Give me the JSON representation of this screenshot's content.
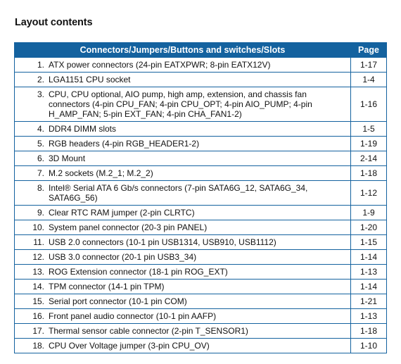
{
  "document": {
    "section_title": "Layout contents"
  },
  "table": {
    "headers": {
      "name": "Connectors/Jumpers/Buttons and switches/Slots",
      "page": "Page"
    },
    "rows": [
      {
        "num": "1.",
        "desc": "ATX power connectors (24-pin EATXPWR; 8-pin EATX12V)",
        "page": "1-17"
      },
      {
        "num": "2.",
        "desc": "LGA1151 CPU socket",
        "page": "1-4"
      },
      {
        "num": "3.",
        "desc": "CPU, CPU optional, AIO pump, high amp, extension, and chassis fan connectors (4-pin CPU_FAN; 4-pin CPU_OPT; 4-pin AIO_PUMP; 4-pin H_AMP_FAN; 5-pin EXT_FAN; 4-pin CHA_FAN1-2)",
        "page": "1-16"
      },
      {
        "num": "4.",
        "desc": "DDR4 DIMM slots",
        "page": "1-5"
      },
      {
        "num": "5.",
        "desc": "RGB headers (4-pin RGB_HEADER1-2)",
        "page": "1-19"
      },
      {
        "num": "6.",
        "desc": "3D Mount",
        "page": "2-14"
      },
      {
        "num": "7.",
        "desc": "M.2 sockets (M.2_1; M.2_2)",
        "page": "1-18"
      },
      {
        "num": "8.",
        "desc": "Intel® Serial ATA 6 Gb/s connectors (7-pin SATA6G_12, SATA6G_34, SATA6G_56)",
        "page": "1-12"
      },
      {
        "num": "9.",
        "desc": "Clear RTC RAM jumper (2-pin CLRTC)",
        "page": "1-9"
      },
      {
        "num": "10.",
        "desc": "System panel connector (20-3 pin PANEL)",
        "page": "1-20"
      },
      {
        "num": "11.",
        "desc": "USB 2.0 connectors (10-1 pin USB1314, USB910, USB1112)",
        "page": "1-15"
      },
      {
        "num": "12.",
        "desc": "USB 3.0 connector (20-1 pin USB3_34)",
        "page": "1-14"
      },
      {
        "num": "13.",
        "desc": "ROG Extension connector (18-1 pin ROG_EXT)",
        "page": "1-13"
      },
      {
        "num": "14.",
        "desc": "TPM connector (14-1 pin TPM)",
        "page": "1-14"
      },
      {
        "num": "15.",
        "desc": "Serial port connector (10-1 pin COM)",
        "page": "1-21"
      },
      {
        "num": "16.",
        "desc": "Front panel audio connector (10-1 pin AAFP)",
        "page": "1-13"
      },
      {
        "num": "17.",
        "desc": "Thermal sensor cable connector (2-pin T_SENSOR1)",
        "page": "1-18"
      },
      {
        "num": "18.",
        "desc": "CPU Over Voltage jumper (3-pin CPU_OV)",
        "page": "1-10"
      }
    ]
  },
  "colors": {
    "header_bg": "#14629f",
    "border": "#14629f"
  }
}
